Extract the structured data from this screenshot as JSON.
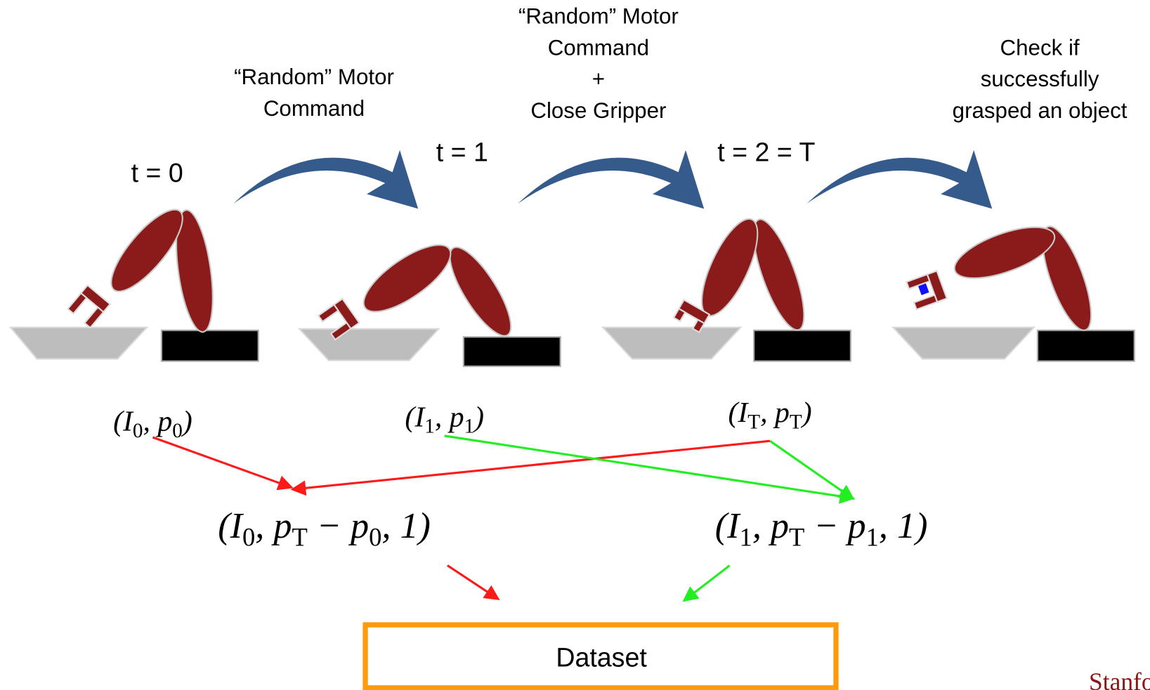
{
  "captions": [
    {
      "lines": [
        "“Random” Motor",
        "Command"
      ]
    },
    {
      "lines": [
        "“Random” Motor",
        "Command",
        "+",
        "Close Gripper"
      ]
    },
    {
      "lines": [
        "Check if",
        "successfully",
        "grasped an object"
      ]
    }
  ],
  "time_labels": [
    "t = 0",
    "t = 1",
    "t = 2 = T"
  ],
  "observations": [
    [
      "(I",
      "0",
      ", p",
      "0",
      ")"
    ],
    [
      "(I",
      "1",
      ", p",
      "1",
      ")"
    ],
    [
      "(I",
      "T",
      ", p",
      "T",
      ")"
    ]
  ],
  "samples": [
    [
      "(I",
      "0",
      ", p",
      "T",
      " − p",
      "0",
      ", 1)"
    ],
    [
      "(I",
      "1",
      ", p",
      "T",
      " − p",
      "1",
      ", 1)"
    ]
  ],
  "dataset": "Dataset",
  "footer": "Stanford University"
}
